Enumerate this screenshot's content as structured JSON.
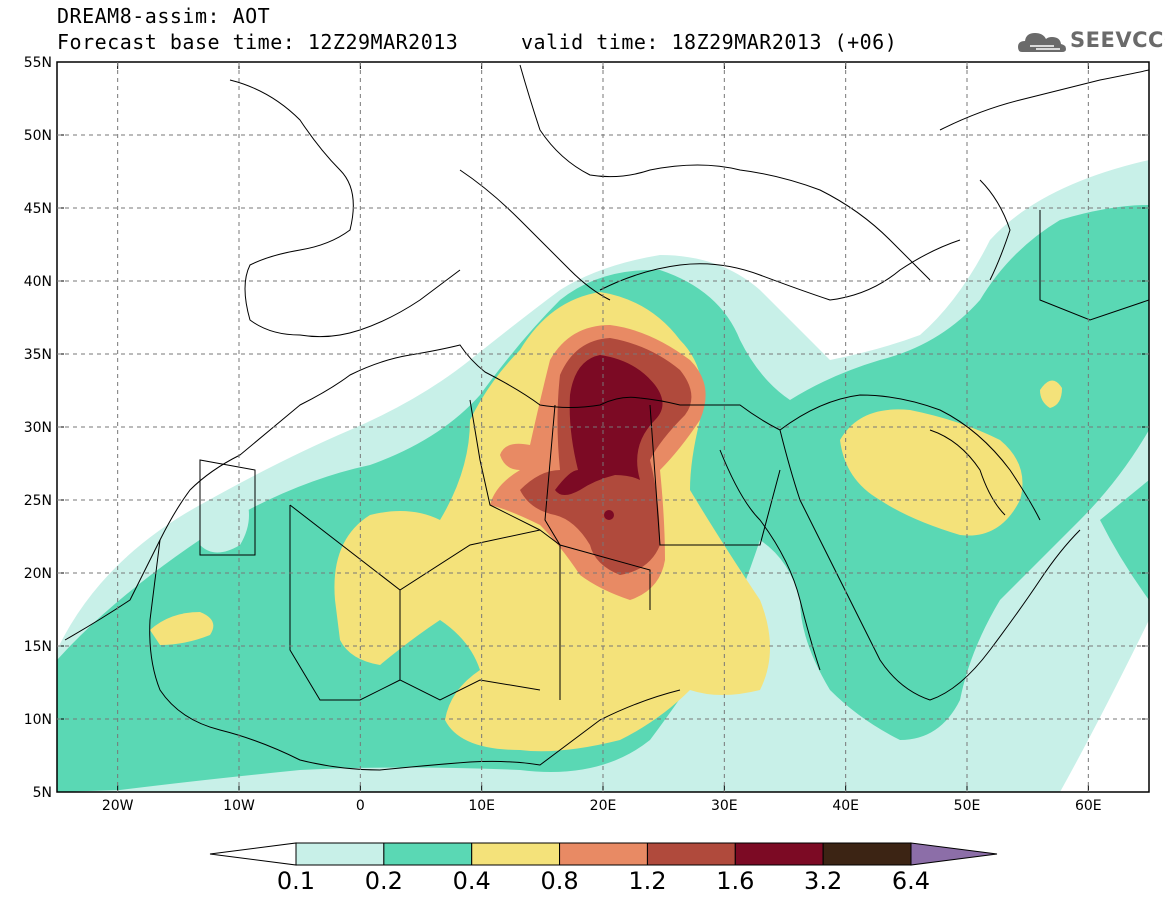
{
  "title": {
    "line1": "DREAM8-assim: AOT",
    "line2": "Forecast base time: 12Z29MAR2013     valid time: 18Z29MAR2013 (+06)"
  },
  "logo": {
    "text": "SEEVCCC",
    "icon": "cloud-icon"
  },
  "map": {
    "lon_range": [
      -25,
      65
    ],
    "lat_range": [
      5,
      55
    ],
    "lon_ticks": [
      -20,
      -10,
      0,
      10,
      20,
      30,
      40,
      50,
      60
    ],
    "lon_labels": [
      "20W",
      "10W",
      "0",
      "10E",
      "20E",
      "30E",
      "40E",
      "50E",
      "60E"
    ],
    "lat_ticks": [
      55,
      50,
      45,
      40,
      35,
      30,
      25,
      20,
      15,
      10,
      5
    ],
    "lat_labels": [
      "55N",
      "50N",
      "45N",
      "40N",
      "35N",
      "30N",
      "25N",
      "20N",
      "15N",
      "10N",
      "5N"
    ]
  },
  "colorbar": {
    "levels": [
      "0.1",
      "0.2",
      "0.4",
      "0.8",
      "1.2",
      "1.6",
      "3.2",
      "6.4"
    ],
    "colors": [
      "#ffffff",
      "#c8f0e8",
      "#5ad8b4",
      "#f4e27a",
      "#e88a64",
      "#b04a3c",
      "#7c0a24",
      "#3c2414",
      "#8c6ea8"
    ]
  }
}
